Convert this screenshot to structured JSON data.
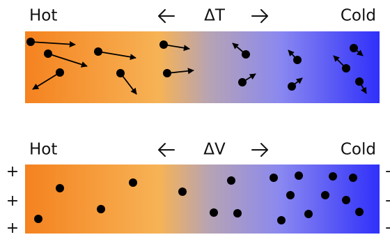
{
  "panels": [
    {
      "left_label": "Hot",
      "delta_label": "ΔT",
      "right_label": "Cold"
    },
    {
      "left_label": "Hot",
      "delta_label": "ΔV",
      "right_label": "Cold",
      "left_signs": [
        "+",
        "+",
        "+"
      ],
      "right_signs": [
        "−",
        "−",
        "−"
      ]
    }
  ]
}
